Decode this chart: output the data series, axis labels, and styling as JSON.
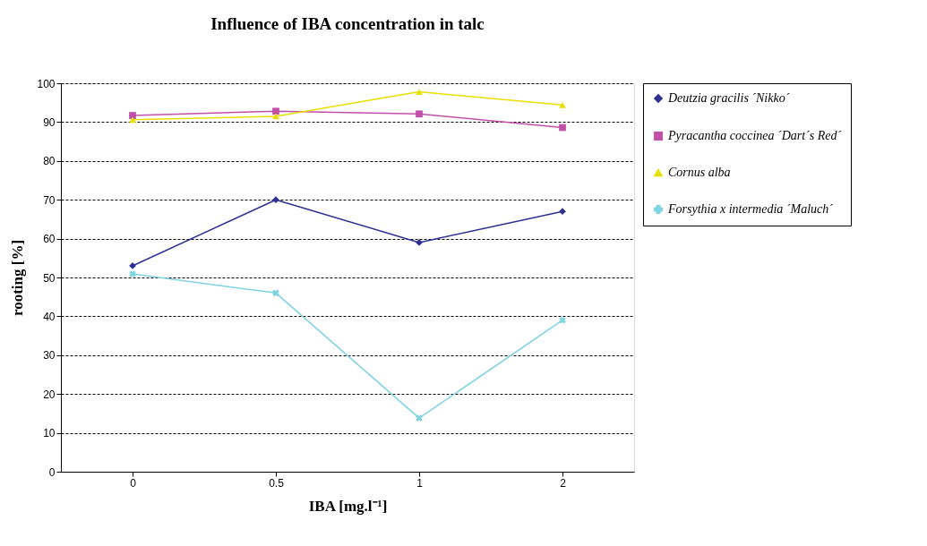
{
  "chart_data": {
    "type": "line",
    "title": "Influence of  IBA concentration in talc",
    "xlabel": "IBA [mg.l⁻¹]",
    "ylabel": "rooting [%]",
    "categories": [
      "0",
      "0.5",
      "1",
      "2"
    ],
    "series": [
      {
        "name": "Deutzia gracilis ´Nikko´",
        "color": "#2e3192",
        "marker": "diamond",
        "values": [
          53,
          70,
          59,
          67
        ]
      },
      {
        "name": "Pyracantha coccinea ´Dart´s Red´",
        "color": "#c150a8",
        "marker": "square",
        "values": [
          91.7,
          92.8,
          92.1,
          88.6
        ]
      },
      {
        "name": "Cornus alba",
        "color": "#e8e000",
        "marker": "triangle",
        "values": [
          90.6,
          91.5,
          97.8,
          94.4
        ]
      },
      {
        "name": "Forsythia  x intermedia ´Maluch´",
        "color": "#7fd3e3",
        "marker": "cross",
        "values": [
          50.9,
          46.0,
          13.8,
          39.0
        ]
      }
    ],
    "ylim": [
      0,
      100
    ],
    "yticks": [
      0,
      10,
      20,
      30,
      40,
      50,
      60,
      70,
      80,
      90,
      100
    ],
    "grid": "y",
    "legend": "right"
  }
}
